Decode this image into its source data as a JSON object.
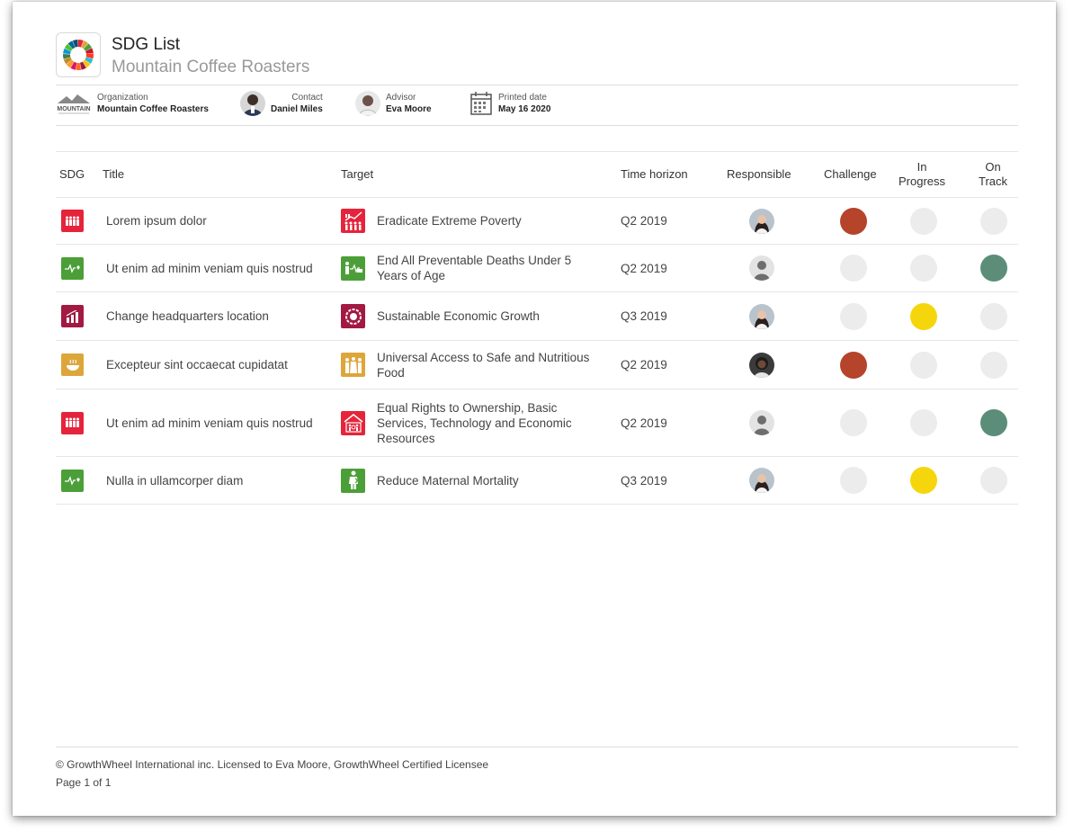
{
  "header": {
    "title": "SDG List",
    "subtitle": "Mountain Coffee Roasters"
  },
  "meta": {
    "organization": {
      "label": "Organization",
      "value": "Mountain Coffee Roasters",
      "logo_text": "MOUNTAIN"
    },
    "contact": {
      "label": "Contact",
      "value": "Daniel Miles"
    },
    "advisor": {
      "label": "Advisor",
      "value": "Eva Moore"
    },
    "printed": {
      "label": "Printed date",
      "value": "May 16 2020"
    }
  },
  "columns": {
    "sdg": "SDG",
    "title": "Title",
    "target": "Target",
    "time": "Time horizon",
    "responsible": "Responsible",
    "challenge": "Challenge",
    "in_progress": "In Progress",
    "on_track": "On Track"
  },
  "status_colors": {
    "challenge": "#b5442b",
    "in_progress": "#f5d60c",
    "on_track": "#5c8d78",
    "inactive": "#ececec"
  },
  "rows": [
    {
      "sdg_color": "#e5243b",
      "sdg_icon": "people-icon",
      "title": "Lorem ipsum dolor",
      "target_color": "#e5243b",
      "target_icon": "poverty-chart-icon",
      "target": "Eradicate Extreme Poverty",
      "time": "Q2 2019",
      "responsible": "woman-avatar",
      "status": "challenge"
    },
    {
      "sdg_color": "#4c9f38",
      "sdg_icon": "heartbeat-icon",
      "title": "Ut enim ad minim veniam quis nostrud",
      "target_color": "#4c9f38",
      "target_icon": "child-health-icon",
      "target": "End All Preventable Deaths Under 5 Years of Age",
      "time": "Q2 2019",
      "responsible": "placeholder-avatar",
      "status": "on_track"
    },
    {
      "sdg_color": "#a21942",
      "sdg_icon": "growth-chart-icon",
      "title": "Change headquarters location",
      "target_color": "#a21942",
      "target_icon": "economy-icon",
      "target": "Sustainable Economic Growth",
      "time": "Q3 2019",
      "responsible": "woman-avatar",
      "status": "in_progress"
    },
    {
      "sdg_color": "#dda63a",
      "sdg_icon": "food-bowl-icon",
      "title": "Excepteur sint occaecat cupidatat",
      "target_color": "#dda63a",
      "target_icon": "family-food-icon",
      "target": "Universal Access to Safe and Nutritious Food",
      "time": "Q2 2019",
      "responsible": "dark-avatar",
      "status": "challenge"
    },
    {
      "sdg_color": "#e5243b",
      "sdg_icon": "people-icon",
      "title": "Ut enim ad minim veniam quis nostrud",
      "target_color": "#e5243b",
      "target_icon": "house-rights-icon",
      "target": "Equal Rights to Ownership, Basic Services, Technology and Economic Resources",
      "time": "Q2 2019",
      "responsible": "placeholder-avatar",
      "status": "on_track"
    },
    {
      "sdg_color": "#4c9f38",
      "sdg_icon": "heartbeat-icon",
      "title": "Nulla in ullamcorper diam",
      "target_color": "#4c9f38",
      "target_icon": "maternal-icon",
      "target": "Reduce Maternal Mortality",
      "time": "Q3 2019",
      "responsible": "woman-avatar",
      "status": "in_progress"
    }
  ],
  "footer": {
    "copyright": "© GrowthWheel International inc. Licensed to Eva Moore, GrowthWheel Certified Licensee",
    "page": "Page 1 of 1"
  }
}
